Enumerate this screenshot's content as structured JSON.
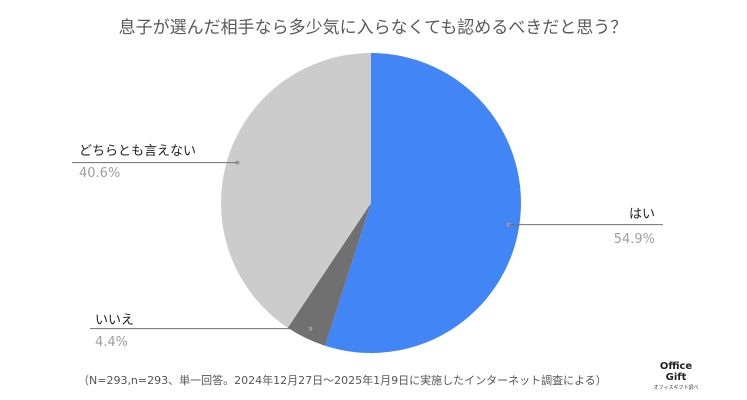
{
  "chart_data": {
    "type": "pie",
    "title": "息子が選んだ相手なら多少気に入らなくても認めるべきだと思う？",
    "slices": [
      {
        "label": "はい",
        "value": 54.9,
        "value_label": "54.9%",
        "color": "#4285f4"
      },
      {
        "label": "いいえ",
        "value": 4.4,
        "value_label": "4.4%",
        "color": "#707070"
      },
      {
        "label": "どちらとも言えない",
        "value": 40.6,
        "value_label": "40.6%",
        "color": "#cccccc"
      }
    ],
    "start_angle_deg": 0,
    "direction": "clockwise",
    "legend": "none",
    "label_style": "leader-lines"
  },
  "footnote": "（N=293,n=293、単一回答。2024年12月27日〜2025年1月9日に実施したインターネット調査による）",
  "logo": {
    "line1": "Office",
    "line2": "Gift",
    "tagline": "オフィスギフト調べ"
  }
}
